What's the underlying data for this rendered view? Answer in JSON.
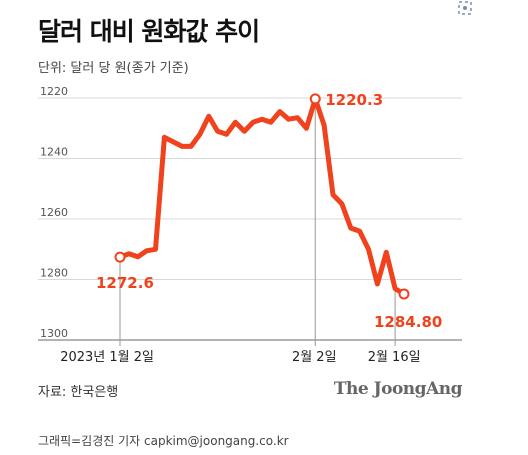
{
  "title": "달러 대비 원화값 추이",
  "unit_label": "단위: 달러 당 원(종가 기준)",
  "source": "자료: 한국은행",
  "logo": "The JoongAng",
  "credit": "그래픽=김경진 기자 capkim@joongang.co.kr",
  "colors": {
    "line": "#f0421c",
    "grid": "#d9d9d9",
    "text": "#222222"
  },
  "chart_data": {
    "type": "line",
    "title": "달러 대비 원화값 추이",
    "ylabel": "단위: 달러 당 원(종가 기준)",
    "xlabel": "",
    "y_inverted": true,
    "ylim": [
      1220,
      1300
    ],
    "y_ticks": [
      "1220",
      "1240",
      "1260",
      "1280",
      "1300"
    ],
    "x_ticks": [
      {
        "index": 0,
        "label": "2023년 1월 2일"
      },
      {
        "index": 22,
        "label": "2월 2일"
      },
      {
        "index": 31,
        "label": "2월 16일"
      }
    ],
    "grid": true,
    "series": [
      {
        "values": [
          1272.6,
          1271.5,
          1272.5,
          1270.5,
          1270,
          1233,
          1234.5,
          1236,
          1236,
          1232,
          1226,
          1231,
          1232,
          1228,
          1231,
          1228,
          1227,
          1228,
          1224.5,
          1227,
          1226.5,
          1230,
          1220.3,
          1229,
          1252,
          1255,
          1263,
          1264,
          1270,
          1281.5,
          1271,
          1283,
          1284.8
        ]
      }
    ],
    "annotations": [
      {
        "index": 0,
        "label": "1272.6"
      },
      {
        "index": 22,
        "label": "1220.3"
      },
      {
        "index": 32,
        "label": "1284.80"
      }
    ]
  }
}
